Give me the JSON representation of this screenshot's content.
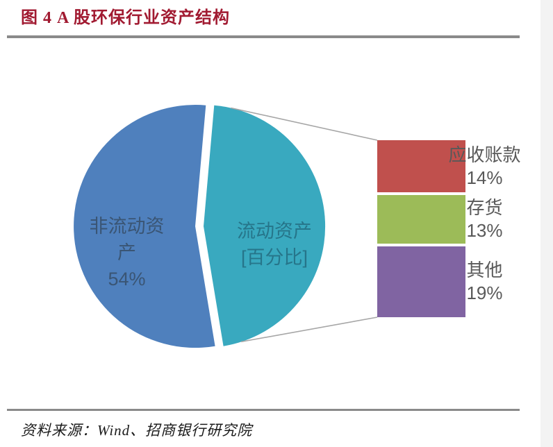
{
  "header": {
    "title": "图 4 A 股环保行业资产结构"
  },
  "footer": {
    "source": "资料来源：Wind、招商银行研究院"
  },
  "colors": {
    "title": "#A11A31",
    "divider": "#8A8A8A",
    "connector": "#A6A6A6",
    "bar_label_text": "#595959"
  },
  "chart_data": {
    "type": "pie",
    "subtype": "bar-of-pie",
    "title": "图 4 A 股环保行业资产结构",
    "legend_position": "none",
    "grid": false,
    "slices": [
      {
        "name": "非流动资产",
        "value": 54,
        "pct_label": "54%",
        "color": "#4F80BD",
        "label_lines": [
          "非流动资",
          "产",
          "54%"
        ]
      },
      {
        "name": "流动资产",
        "value": 46,
        "pct_label": "[百分比]",
        "color": "#39A9BF",
        "label_lines": [
          "流动资产",
          "[百分比]"
        ]
      }
    ],
    "breakdown": {
      "of_slice": "流动资产",
      "segments": [
        {
          "name": "应收账款",
          "value": 14,
          "pct_label": "14%",
          "color": "#C0504D"
        },
        {
          "name": "存货",
          "value": 13,
          "pct_label": "13%",
          "color": "#9CBB58"
        },
        {
          "name": "其他",
          "value": 19,
          "pct_label": "19%",
          "color": "#8064A2"
        }
      ]
    }
  }
}
